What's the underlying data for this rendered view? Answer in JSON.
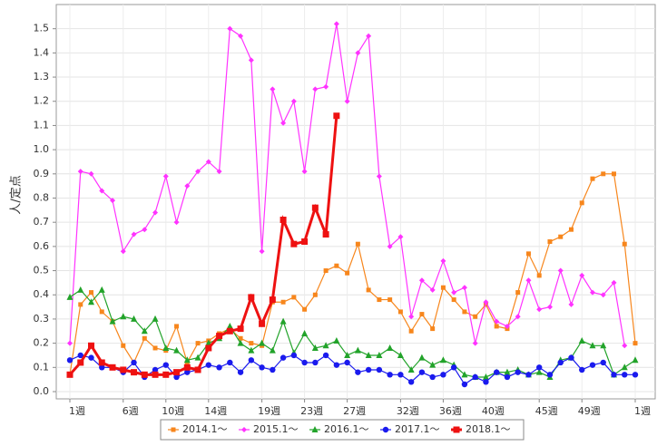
{
  "chart_data": {
    "type": "line",
    "y_label": "人/定点",
    "categories": [
      "1週",
      null,
      null,
      null,
      null,
      "6週",
      null,
      null,
      null,
      "10週",
      null,
      null,
      null,
      "14週",
      null,
      null,
      null,
      null,
      "19週",
      null,
      null,
      null,
      "23週",
      null,
      null,
      null,
      "27週",
      null,
      null,
      null,
      null,
      "32週",
      null,
      null,
      null,
      "36週",
      null,
      null,
      null,
      "40週",
      null,
      null,
      null,
      null,
      "45週",
      null,
      null,
      null,
      "49週",
      null,
      null,
      null,
      null,
      "1週"
    ],
    "ylim": [
      -0.03,
      1.6
    ],
    "yticks": [
      {
        "value": 0,
        "label": "0.0"
      },
      0.1,
      0.2,
      0.3,
      0.4,
      0.5,
      0.6,
      0.7,
      0.8,
      0.9,
      {
        "value": 1,
        "label": "1.0"
      },
      1.1,
      1.2,
      1.3,
      1.4,
      1.5
    ],
    "grid": true,
    "legend": "bottom",
    "series": [
      {
        "name": "2014.1～",
        "color": "#f7861c",
        "marker": "square",
        "values": [
          0.07,
          0.36,
          0.41,
          0.33,
          0.29,
          0.19,
          0.12,
          0.22,
          0.18,
          0.17,
          0.27,
          0.12,
          0.2,
          0.21,
          0.24,
          0.26,
          0.22,
          0.2,
          0.19,
          0.37,
          0.37,
          0.39,
          0.34,
          0.4,
          0.5,
          0.52,
          0.49,
          0.61,
          0.42,
          0.38,
          0.38,
          0.33,
          0.25,
          0.32,
          0.26,
          0.43,
          0.38,
          0.33,
          0.31,
          0.36,
          0.27,
          0.26,
          0.41,
          0.57,
          0.48,
          0.62,
          0.64,
          0.67,
          0.78,
          0.88,
          0.9,
          0.9,
          0.61,
          0.2
        ]
      },
      {
        "name": "2015.1～",
        "color": "#ff33ff",
        "marker": "diamond",
        "values": [
          0.2,
          0.91,
          0.9,
          0.83,
          0.79,
          0.58,
          0.65,
          0.67,
          0.74,
          0.89,
          0.7,
          0.85,
          0.91,
          0.95,
          0.91,
          1.5,
          1.47,
          1.37,
          0.58,
          1.25,
          1.11,
          1.2,
          0.91,
          1.25,
          1.26,
          1.52,
          1.2,
          1.4,
          1.47,
          0.89,
          0.6,
          0.64,
          0.31,
          0.46,
          0.42,
          0.54,
          0.41,
          0.43,
          0.2,
          0.37,
          0.29,
          0.27,
          0.31,
          0.46,
          0.34,
          0.35,
          0.5,
          0.36,
          0.48,
          0.41,
          0.4,
          0.45,
          0.19,
          null
        ]
      },
      {
        "name": "2016.1～",
        "color": "#22a32a",
        "marker": "triangle",
        "values": [
          0.39,
          0.42,
          0.37,
          0.42,
          0.29,
          0.31,
          0.3,
          0.25,
          0.3,
          0.18,
          0.17,
          0.13,
          0.14,
          0.2,
          0.22,
          0.27,
          0.2,
          0.17,
          0.2,
          0.17,
          0.29,
          0.16,
          0.24,
          0.18,
          0.19,
          0.21,
          0.15,
          0.17,
          0.15,
          0.15,
          0.18,
          0.15,
          0.09,
          0.14,
          0.11,
          0.13,
          0.11,
          0.07,
          0.06,
          0.06,
          0.08,
          0.08,
          0.09,
          0.07,
          0.08,
          0.06,
          0.13,
          0.14,
          0.21,
          0.19,
          0.19,
          0.07,
          0.1,
          0.13
        ]
      },
      {
        "name": "2017.1～",
        "color": "#1a1aee",
        "marker": "circle",
        "values": [
          0.13,
          0.15,
          0.14,
          0.1,
          0.1,
          0.08,
          0.12,
          0.06,
          0.09,
          0.11,
          0.06,
          0.08,
          0.09,
          0.11,
          0.1,
          0.12,
          0.08,
          0.13,
          0.1,
          0.09,
          0.14,
          0.15,
          0.12,
          0.12,
          0.15,
          0.11,
          0.12,
          0.08,
          0.09,
          0.09,
          0.07,
          0.07,
          0.04,
          0.08,
          0.06,
          0.07,
          0.1,
          0.03,
          0.06,
          0.04,
          0.08,
          0.06,
          0.08,
          0.07,
          0.1,
          0.07,
          0.12,
          0.14,
          0.09,
          0.11,
          0.12,
          0.07,
          0.07,
          0.07
        ]
      },
      {
        "name": "2018.1～",
        "color": "#ee1111",
        "marker": "bigsquare",
        "values": [
          0.07,
          0.12,
          0.19,
          0.12,
          0.1,
          0.09,
          0.08,
          0.07,
          0.07,
          0.07,
          0.08,
          0.1,
          0.09,
          0.18,
          0.23,
          0.25,
          0.26,
          0.39,
          0.28,
          0.38,
          0.71,
          0.61,
          0.62,
          0.76,
          0.65,
          1.14,
          null,
          null,
          null,
          null,
          null,
          null,
          null,
          null,
          null,
          null,
          null,
          null,
          null,
          null,
          null,
          null,
          null,
          null,
          null,
          null,
          null,
          null,
          null,
          null,
          null,
          null,
          null,
          null
        ]
      }
    ]
  }
}
